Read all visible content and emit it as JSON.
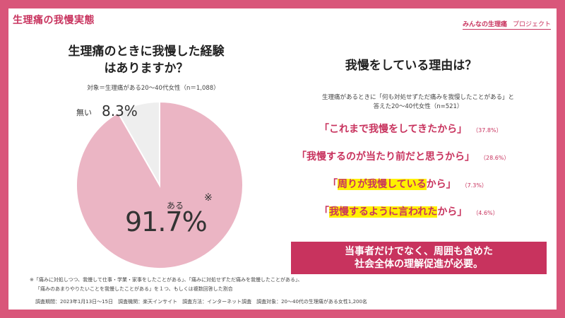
{
  "header": {
    "title": "生理痛の我慢実態",
    "logo_text": "みんなの生理痛",
    "logo_sub": "プロジェクト"
  },
  "left": {
    "question_line1": "生理痛のときに我慢した経験",
    "question_line2": "はありますか？",
    "target": "対象＝生理痛がある20〜40代女性（n＝1,088）",
    "label_none": "無い",
    "value_none": "8.3%",
    "label_yes": "ある",
    "value_yes": "91.7%",
    "asterisk": "※"
  },
  "right": {
    "title": "我慢をしている理由は？",
    "subtitle_line1": "生理痛があるときに「何も対処せずただ痛みを我慢したことがある」と",
    "subtitle_line2": "答えた20〜40代女性（n=521）",
    "reasons": [
      {
        "open": "「",
        "highlight": "",
        "text": "これまで我慢をしてきたから",
        "close": "」",
        "pct": "（37.8%）"
      },
      {
        "open": "「",
        "highlight": "",
        "text": "我慢するのが当たり前だと思うから",
        "close": "」",
        "pct": "（28.6%）"
      },
      {
        "open": "「",
        "highlight": "周りが我慢している",
        "text": "から",
        "close": "」",
        "pct": "（7.3%）"
      },
      {
        "open": "「",
        "highlight": "我慢するように言われた",
        "text": "から",
        "close": "」",
        "pct": "（4.6%）"
      }
    ],
    "banner_line1": "当事者だけでなく、周囲も含めた",
    "banner_line2": "社会全体の理解促進が必要。"
  },
  "footnotes": {
    "note1": "※「痛みに対処しつつ、我慢して仕事・学業・家事をしたことがある」、「痛みに対処せずただ痛みを我慢したことがある」、",
    "note2": "「痛みのあまりやりたいことを我慢したことがある」を１つ、もしくは複数回答した割合",
    "survey": "調査期間：2023年1月13日〜15日　調査機関：楽天インサイト　調査方法：インターネット調査　調査対象：20〜40代の生理痛がある女性1,200名"
  },
  "colors": {
    "accent": "#c8335e",
    "pie_yes": "#ebb5c4",
    "pie_no": "#eeeeee",
    "highlight": "#fff100"
  },
  "chart_data": {
    "type": "pie",
    "title": "生理痛のときに我慢した経験はありますか？",
    "categories": [
      "ある",
      "無い"
    ],
    "values": [
      91.7,
      8.3
    ]
  }
}
